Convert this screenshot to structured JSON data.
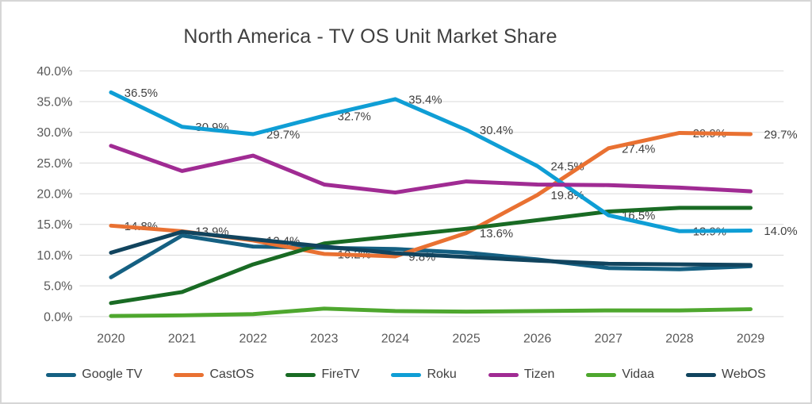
{
  "window": {
    "background": "#FFFFFF",
    "border_color": "#D6D6D6"
  },
  "styles": {
    "grid_color": "#D9D9D9",
    "axis_text_color": "#595959",
    "data_label_color": "#404040",
    "title_color": "#404040"
  },
  "chart_data": {
    "type": "line",
    "title": "North America - TV OS Unit Market Share",
    "xlabel": "",
    "ylabel": "",
    "grid": true,
    "legend_position": "bottom",
    "x_labels": [
      "2020",
      "2021",
      "2022",
      "2023",
      "2024",
      "2025",
      "2026",
      "2027",
      "2028",
      "2029"
    ],
    "y_axis": {
      "min": 0,
      "max": 40,
      "step": 5,
      "tick_labels": [
        "0.0%",
        "5.0%",
        "10.0%",
        "15.0%",
        "20.0%",
        "25.0%",
        "30.0%",
        "35.0%",
        "40.0%"
      ]
    },
    "series": [
      {
        "name": "Google TV",
        "color": "#156082",
        "data_labels": false,
        "values": [
          6.4,
          13.2,
          11.4,
          11.2,
          11.0,
          10.4,
          9.3,
          7.9,
          7.7,
          8.2
        ]
      },
      {
        "name": "CastOS",
        "color": "#E97132",
        "data_labels": true,
        "values": [
          14.8,
          13.9,
          12.4,
          10.2,
          9.8,
          13.6,
          19.8,
          27.4,
          29.9,
          29.7
        ]
      },
      {
        "name": "FireTV",
        "color": "#196B24",
        "data_labels": false,
        "values": [
          2.2,
          4.0,
          8.5,
          11.9,
          13.1,
          14.3,
          15.7,
          17.1,
          17.7,
          17.7
        ]
      },
      {
        "name": "Roku",
        "color": "#0F9ED5",
        "data_labels": true,
        "values": [
          36.5,
          30.9,
          29.7,
          32.7,
          35.4,
          30.4,
          24.5,
          16.5,
          13.9,
          14.0
        ]
      },
      {
        "name": "Tizen",
        "color": "#A02B93",
        "data_labels": false,
        "values": [
          27.8,
          23.7,
          26.2,
          21.5,
          20.2,
          22.0,
          21.5,
          21.4,
          21.0,
          20.4
        ]
      },
      {
        "name": "Vidaa",
        "color": "#4EA72E",
        "data_labels": false,
        "values": [
          0.1,
          0.2,
          0.4,
          1.3,
          0.9,
          0.8,
          0.9,
          1.0,
          1.0,
          1.2
        ]
      },
      {
        "name": "WebOS",
        "color": "#11445E",
        "data_labels": false,
        "values": [
          10.4,
          13.8,
          12.6,
          11.4,
          10.3,
          9.7,
          9.1,
          8.6,
          8.5,
          8.4
        ]
      }
    ]
  }
}
